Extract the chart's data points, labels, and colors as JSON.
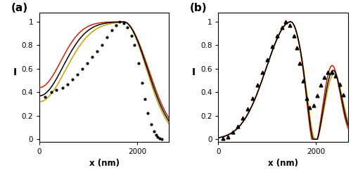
{
  "title_a": "(a)",
  "title_b": "(b)",
  "xlabel": "x (nm)",
  "ylabel": "I",
  "xlim": [
    0,
    2650
  ],
  "ylim_a": [
    -0.02,
    1.08
  ],
  "ylim_b": [
    -0.02,
    1.08
  ],
  "xticks": [
    0,
    2000
  ],
  "yticks": [
    0,
    0.2,
    0.4,
    0.6,
    0.8,
    1.0
  ],
  "color_black": "#000000",
  "color_gold": "#c8a000",
  "color_red": "#cc2200",
  "figsize": [
    5.1,
    2.52
  ],
  "dpi": 100,
  "panel_a_dots_x": [
    120,
    240,
    340,
    480,
    580,
    680,
    780,
    880,
    980,
    1080,
    1180,
    1280,
    1380,
    1480,
    1560,
    1640,
    1720,
    1800,
    1880,
    1940,
    2020,
    2100,
    2160,
    2220,
    2280,
    2340,
    2380,
    2420,
    2460,
    2500
  ],
  "panel_a_dots_y": [
    0.36,
    0.4,
    0.42,
    0.44,
    0.47,
    0.51,
    0.55,
    0.6,
    0.65,
    0.7,
    0.75,
    0.8,
    0.87,
    0.93,
    0.97,
    1.0,
    0.99,
    0.95,
    0.88,
    0.8,
    0.65,
    0.48,
    0.34,
    0.22,
    0.13,
    0.07,
    0.04,
    0.02,
    0.01,
    0.0
  ],
  "panel_b_dots_x": [
    100,
    200,
    300,
    400,
    500,
    600,
    700,
    800,
    900,
    1000,
    1100,
    1200,
    1300,
    1380,
    1460,
    1540,
    1600,
    1660,
    1730,
    1800,
    1870,
    1950,
    2020,
    2090,
    2160,
    2240,
    2320,
    2400,
    2480,
    2560
  ],
  "panel_b_dots_y": [
    0.01,
    0.02,
    0.06,
    0.11,
    0.18,
    0.26,
    0.35,
    0.46,
    0.57,
    0.68,
    0.79,
    0.88,
    0.95,
    1.0,
    0.97,
    0.88,
    0.78,
    0.65,
    0.5,
    0.35,
    0.27,
    0.29,
    0.37,
    0.46,
    0.53,
    0.57,
    0.57,
    0.54,
    0.47,
    0.38
  ]
}
